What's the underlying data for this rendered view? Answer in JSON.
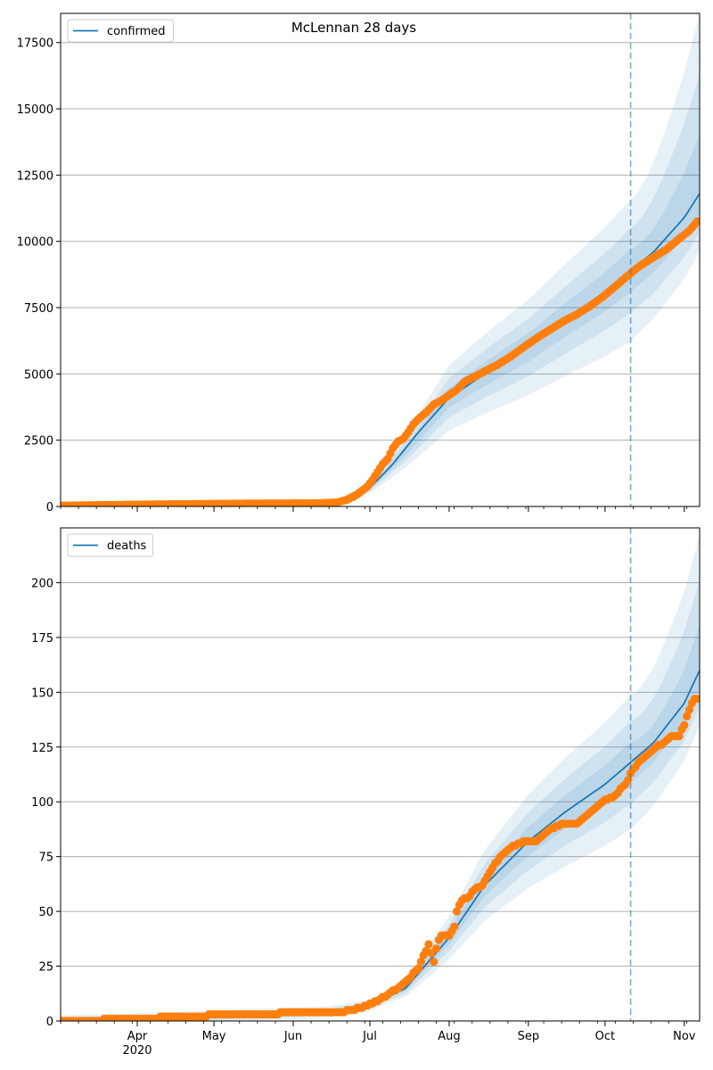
{
  "figure": {
    "suptitle": "McLennan 28 days"
  },
  "colors": {
    "line": "#1f77b4",
    "points": "#ff7f0e",
    "band": "#1f77b4",
    "grid": "#b0b0b0",
    "divider": "#1f77b4"
  },
  "chart_data": [
    {
      "type": "line",
      "title": "McLennan 28 days",
      "xlabel": "",
      "ylabel": "",
      "x_type": "date",
      "xlim": [
        "2020-03-02",
        "2020-11-07"
      ],
      "ylim": [
        0,
        18600
      ],
      "y_ticks": [
        0,
        2500,
        5000,
        7500,
        10000,
        12500,
        15000,
        17500
      ],
      "x_ticks": [
        {
          "date": "2020-04-01",
          "label": "Apr",
          "sublabel": "2020"
        },
        {
          "date": "2020-05-01",
          "label": "May"
        },
        {
          "date": "2020-06-01",
          "label": "Jun"
        },
        {
          "date": "2020-07-01",
          "label": "Jul"
        },
        {
          "date": "2020-08-01",
          "label": "Aug"
        },
        {
          "date": "2020-09-01",
          "label": "Sep"
        },
        {
          "date": "2020-10-01",
          "label": "Oct"
        },
        {
          "date": "2020-11-01",
          "label": "Nov"
        }
      ],
      "grid": "horizontal",
      "legend": {
        "position": "top-left",
        "entries": [
          "confirmed"
        ]
      },
      "forecast_start": "2020-10-11",
      "series": [
        {
          "name": "confirmed",
          "kind": "line",
          "x": [
            "2020-03-02",
            "2020-06-15",
            "2020-06-25",
            "2020-07-01",
            "2020-07-10",
            "2020-07-20",
            "2020-08-01",
            "2020-08-15",
            "2020-09-01",
            "2020-09-15",
            "2020-10-01",
            "2020-10-11",
            "2020-10-20",
            "2020-11-01",
            "2020-11-07"
          ],
          "y": [
            0,
            100,
            250,
            700,
            1600,
            2800,
            4100,
            5000,
            6000,
            7000,
            8100,
            8900,
            9600,
            10900,
            11800
          ]
        },
        {
          "name": "observed confirmed",
          "kind": "scatter",
          "x": [
            "2020-03-02",
            "2020-03-25",
            "2020-04-10",
            "2020-05-15",
            "2020-06-10",
            "2020-06-18",
            "2020-06-22",
            "2020-06-26",
            "2020-06-30",
            "2020-07-02",
            "2020-07-04",
            "2020-07-06",
            "2020-07-08",
            "2020-07-10",
            "2020-07-12",
            "2020-07-14",
            "2020-07-16",
            "2020-07-18",
            "2020-07-20",
            "2020-07-23",
            "2020-07-26",
            "2020-07-29",
            "2020-08-01",
            "2020-08-04",
            "2020-08-07",
            "2020-08-11",
            "2020-08-15",
            "2020-08-20",
            "2020-08-25",
            "2020-08-30",
            "2020-09-05",
            "2020-09-10",
            "2020-09-15",
            "2020-09-20",
            "2020-09-25",
            "2020-09-30",
            "2020-10-05",
            "2020-10-11",
            "2020-10-15",
            "2020-10-20",
            "2020-10-25",
            "2020-10-30",
            "2020-11-03",
            "2020-11-06"
          ],
          "y": [
            30,
            60,
            80,
            110,
            120,
            150,
            250,
            450,
            750,
            1000,
            1300,
            1600,
            1800,
            2200,
            2450,
            2550,
            2800,
            3100,
            3300,
            3550,
            3850,
            4000,
            4200,
            4400,
            4700,
            4900,
            5100,
            5350,
            5650,
            6000,
            6400,
            6700,
            7000,
            7250,
            7550,
            7900,
            8300,
            8800,
            9100,
            9400,
            9700,
            10100,
            10400,
            10750
          ]
        },
        {
          "name": "credible interval bands",
          "kind": "band",
          "x": [
            "2020-03-02",
            "2020-06-15",
            "2020-07-01",
            "2020-07-15",
            "2020-08-01",
            "2020-08-15",
            "2020-09-01",
            "2020-09-15",
            "2020-10-01",
            "2020-10-11",
            "2020-10-20",
            "2020-11-01",
            "2020-11-07"
          ],
          "mid": [
            0,
            100,
            700,
            2100,
            4100,
            5000,
            6000,
            7000,
            8100,
            8900,
            9600,
            10900,
            11800
          ],
          "spread_fractions": [
            0.09,
            0.18,
            0.3
          ],
          "outer_upper_end": 18600,
          "outer_lower_end": 9600
        }
      ]
    },
    {
      "type": "line",
      "title": "",
      "xlabel": "",
      "ylabel": "",
      "x_type": "date",
      "xlim": [
        "2020-03-02",
        "2020-11-07"
      ],
      "ylim": [
        0,
        225
      ],
      "y_ticks": [
        0,
        25,
        50,
        75,
        100,
        125,
        150,
        175,
        200
      ],
      "x_ticks": [
        {
          "date": "2020-04-01",
          "label": "Apr",
          "sublabel": "2020"
        },
        {
          "date": "2020-05-01",
          "label": "May"
        },
        {
          "date": "2020-06-01",
          "label": "Jun"
        },
        {
          "date": "2020-07-01",
          "label": "Jul"
        },
        {
          "date": "2020-08-01",
          "label": "Aug"
        },
        {
          "date": "2020-09-01",
          "label": "Sep"
        },
        {
          "date": "2020-10-01",
          "label": "Oct"
        },
        {
          "date": "2020-11-01",
          "label": "Nov"
        }
      ],
      "grid": "horizontal",
      "legend": {
        "position": "top-left",
        "entries": [
          "deaths"
        ]
      },
      "forecast_start": "2020-10-11",
      "series": [
        {
          "name": "deaths",
          "kind": "line",
          "x": [
            "2020-03-02",
            "2020-04-01",
            "2020-06-15",
            "2020-07-01",
            "2020-07-15",
            "2020-08-01",
            "2020-08-15",
            "2020-09-01",
            "2020-09-15",
            "2020-10-01",
            "2020-10-11",
            "2020-10-20",
            "2020-11-01",
            "2020-11-07"
          ],
          "y": [
            0,
            1,
            4,
            7,
            15,
            38,
            62,
            82,
            95,
            108,
            118,
            127,
            145,
            160
          ]
        },
        {
          "name": "observed deaths",
          "kind": "scatter",
          "x": [
            "2020-03-02",
            "2020-04-05",
            "2020-04-15",
            "2020-06-10",
            "2020-06-20",
            "2020-06-28",
            "2020-07-02",
            "2020-07-08",
            "2020-07-12",
            "2020-07-16",
            "2020-07-20",
            "2020-07-24",
            "2020-07-26",
            "2020-07-27",
            "2020-07-28",
            "2020-07-29",
            "2020-07-30",
            "2020-08-01",
            "2020-08-03",
            "2020-08-04",
            "2020-08-06",
            "2020-08-08",
            "2020-08-11",
            "2020-08-14",
            "2020-08-17",
            "2020-08-21",
            "2020-08-25",
            "2020-08-30",
            "2020-09-04",
            "2020-09-09",
            "2020-09-15",
            "2020-09-20",
            "2020-09-25",
            "2020-09-30",
            "2020-10-05",
            "2020-10-09",
            "2020-10-12",
            "2020-10-16",
            "2020-10-20",
            "2020-10-24",
            "2020-10-27",
            "2020-10-30",
            "2020-11-01",
            "2020-11-03",
            "2020-11-05",
            "2020-11-06"
          ],
          "y": [
            0,
            1,
            2,
            4,
            4,
            6,
            8,
            12,
            15,
            19,
            24,
            35,
            27,
            33,
            37,
            39,
            39,
            39,
            43,
            50,
            55,
            56,
            60,
            62,
            68,
            75,
            79,
            82,
            82,
            87,
            90,
            90,
            95,
            100,
            103,
            108,
            115,
            120,
            124,
            127,
            130,
            130,
            135,
            142,
            147,
            147
          ]
        },
        {
          "name": "credible interval bands",
          "kind": "band",
          "x": [
            "2020-03-02",
            "2020-04-01",
            "2020-06-15",
            "2020-07-01",
            "2020-07-15",
            "2020-08-01",
            "2020-08-15",
            "2020-09-01",
            "2020-09-15",
            "2020-10-01",
            "2020-10-11",
            "2020-10-20",
            "2020-11-01",
            "2020-11-07"
          ],
          "mid": [
            0,
            1,
            4,
            7,
            15,
            38,
            62,
            82,
            95,
            108,
            118,
            127,
            145,
            160
          ],
          "spread_fractions": [
            0.08,
            0.16,
            0.26
          ],
          "min_spread": [
            0.8,
            1.6,
            2.6
          ],
          "outer_upper_end": 222,
          "outer_lower_end": 135
        }
      ]
    }
  ]
}
